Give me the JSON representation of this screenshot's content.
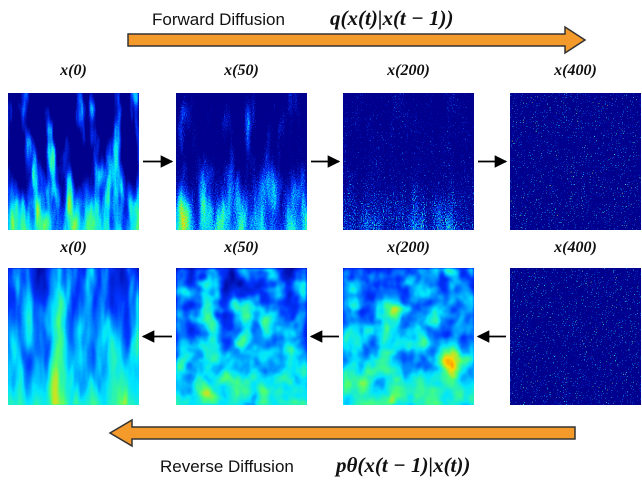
{
  "forward": {
    "label": "Forward Diffusion",
    "formula": "q(x(t)|x(t − 1))",
    "steps": [
      "x(0)",
      "x(50)",
      "x(200)",
      "x(400)"
    ]
  },
  "reverse": {
    "label": "Reverse Diffusion",
    "formula": "pθ(x(t − 1)|x(t))",
    "steps": [
      "x(0)",
      "x(50)",
      "x(200)",
      "x(400)"
    ]
  }
}
